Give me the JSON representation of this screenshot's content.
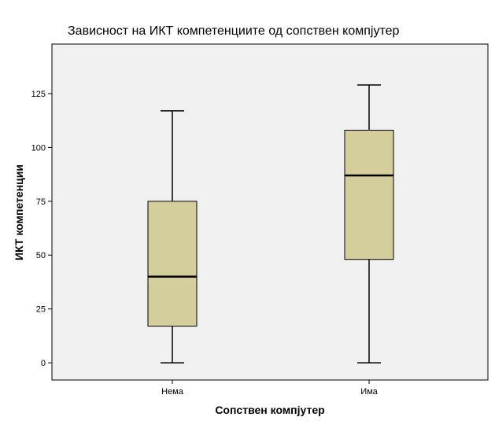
{
  "chart_data": {
    "type": "box",
    "title": "Зависност на ИКТ компетенциите од сопствен компјутер",
    "xlabel": "Сопствен компјутер",
    "ylabel": "ИКТ компетенции",
    "ylim": [
      -8,
      148
    ],
    "yticks": [
      0,
      25,
      50,
      75,
      100,
      125
    ],
    "categories": [
      "Нема",
      "Има"
    ],
    "boxes": [
      {
        "category": "Нема",
        "min": 0,
        "q1": 17,
        "median": 40,
        "q3": 75,
        "max": 117
      },
      {
        "category": "Има",
        "min": 0,
        "q1": 48,
        "median": 87,
        "q3": 108,
        "max": 129
      }
    ],
    "grid": false,
    "colors": {
      "plot_background": "#f0f0f0",
      "box_fill": "#d3ce9b",
      "stroke": "#000000"
    }
  }
}
